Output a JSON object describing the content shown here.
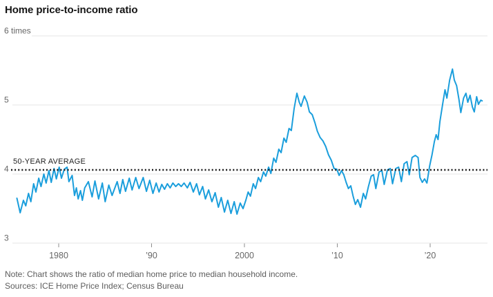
{
  "header": {
    "title": "Home price-to-income ratio"
  },
  "footer": {
    "note": "Note: Chart shows the ratio of median home price to median household income.",
    "sources": "Sources: ICE Home Price Index; Census Bureau"
  },
  "chart_data": {
    "type": "line",
    "title": "Home price-to-income ratio",
    "unit": "times",
    "grid": true,
    "legend": "none",
    "y_axis": {
      "range": [
        3,
        6
      ],
      "ticks": [
        {
          "value": 6,
          "label": "6 times"
        },
        {
          "value": 5,
          "label": "5"
        },
        {
          "value": 4,
          "label": "4"
        },
        {
          "value": 3,
          "label": "3"
        }
      ]
    },
    "x_axis": {
      "range": [
        1975.3,
        2026.3
      ],
      "ticks": [
        {
          "year": 1980,
          "label": "1980"
        },
        {
          "year": 1990,
          "label": "’90"
        },
        {
          "year": 2000,
          "label": "2000"
        },
        {
          "year": 2010,
          "label": "’10"
        },
        {
          "year": 2020,
          "label": "’20"
        }
      ]
    },
    "average_line": {
      "value": 4.06,
      "label": "50-YEAR AVERAGE",
      "color": "#1a1a1a",
      "style": "dotted"
    },
    "series": [
      {
        "name": "Home price-to-income ratio",
        "color": "#1A9EDC",
        "points": [
          [
            1975.5,
            3.65
          ],
          [
            1975.85,
            3.44
          ],
          [
            1976.2,
            3.62
          ],
          [
            1976.45,
            3.54
          ],
          [
            1976.75,
            3.72
          ],
          [
            1977.0,
            3.6
          ],
          [
            1977.3,
            3.86
          ],
          [
            1977.55,
            3.74
          ],
          [
            1977.85,
            3.94
          ],
          [
            1978.1,
            3.82
          ],
          [
            1978.4,
            4.0
          ],
          [
            1978.65,
            3.87
          ],
          [
            1978.95,
            4.05
          ],
          [
            1979.2,
            3.88
          ],
          [
            1979.5,
            4.08
          ],
          [
            1979.75,
            3.93
          ],
          [
            1980.05,
            4.1
          ],
          [
            1980.3,
            3.94
          ],
          [
            1980.6,
            4.07
          ],
          [
            1980.9,
            4.1
          ],
          [
            1981.1,
            3.89
          ],
          [
            1981.45,
            3.98
          ],
          [
            1981.7,
            3.69
          ],
          [
            1981.9,
            3.8
          ],
          [
            1982.1,
            3.64
          ],
          [
            1982.35,
            3.76
          ],
          [
            1982.55,
            3.62
          ],
          [
            1982.8,
            3.8
          ],
          [
            1983.2,
            3.89
          ],
          [
            1983.6,
            3.67
          ],
          [
            1983.9,
            3.9
          ],
          [
            1984.3,
            3.64
          ],
          [
            1984.7,
            3.87
          ],
          [
            1985.0,
            3.6
          ],
          [
            1985.4,
            3.84
          ],
          [
            1985.75,
            3.69
          ],
          [
            1986.3,
            3.89
          ],
          [
            1986.6,
            3.72
          ],
          [
            1986.9,
            3.92
          ],
          [
            1987.2,
            3.75
          ],
          [
            1987.6,
            3.94
          ],
          [
            1987.9,
            3.77
          ],
          [
            1988.3,
            3.95
          ],
          [
            1988.65,
            3.79
          ],
          [
            1989.1,
            3.95
          ],
          [
            1989.45,
            3.75
          ],
          [
            1989.8,
            3.91
          ],
          [
            1990.15,
            3.72
          ],
          [
            1990.5,
            3.87
          ],
          [
            1990.8,
            3.74
          ],
          [
            1991.1,
            3.85
          ],
          [
            1991.4,
            3.78
          ],
          [
            1991.7,
            3.86
          ],
          [
            1992.0,
            3.8
          ],
          [
            1992.3,
            3.87
          ],
          [
            1992.6,
            3.82
          ],
          [
            1992.9,
            3.86
          ],
          [
            1993.2,
            3.82
          ],
          [
            1993.5,
            3.87
          ],
          [
            1993.85,
            3.8
          ],
          [
            1994.15,
            3.88
          ],
          [
            1994.5,
            3.74
          ],
          [
            1994.85,
            3.86
          ],
          [
            1995.15,
            3.7
          ],
          [
            1995.5,
            3.82
          ],
          [
            1995.8,
            3.64
          ],
          [
            1996.15,
            3.77
          ],
          [
            1996.5,
            3.6
          ],
          [
            1996.85,
            3.73
          ],
          [
            1997.2,
            3.52
          ],
          [
            1997.5,
            3.66
          ],
          [
            1997.85,
            3.45
          ],
          [
            1998.2,
            3.62
          ],
          [
            1998.55,
            3.43
          ],
          [
            1998.9,
            3.6
          ],
          [
            1999.2,
            3.42
          ],
          [
            1999.55,
            3.58
          ],
          [
            1999.85,
            3.5
          ],
          [
            2000.15,
            3.62
          ],
          [
            2000.4,
            3.74
          ],
          [
            2000.65,
            3.68
          ],
          [
            2000.95,
            3.86
          ],
          [
            2001.2,
            3.79
          ],
          [
            2001.5,
            3.95
          ],
          [
            2001.75,
            3.89
          ],
          [
            2002.05,
            4.03
          ],
          [
            2002.3,
            3.97
          ],
          [
            2002.6,
            4.1
          ],
          [
            2002.85,
            4.01
          ],
          [
            2003.15,
            4.23
          ],
          [
            2003.4,
            4.17
          ],
          [
            2003.7,
            4.36
          ],
          [
            2003.95,
            4.31
          ],
          [
            2004.25,
            4.52
          ],
          [
            2004.5,
            4.46
          ],
          [
            2004.8,
            4.66
          ],
          [
            2005.05,
            4.63
          ],
          [
            2005.35,
            4.95
          ],
          [
            2005.65,
            5.17
          ],
          [
            2005.9,
            5.04
          ],
          [
            2006.1,
            4.98
          ],
          [
            2006.45,
            5.13
          ],
          [
            2006.75,
            5.04
          ],
          [
            2007.0,
            4.9
          ],
          [
            2007.3,
            4.86
          ],
          [
            2007.6,
            4.74
          ],
          [
            2007.85,
            4.62
          ],
          [
            2008.15,
            4.53
          ],
          [
            2008.45,
            4.48
          ],
          [
            2008.75,
            4.4
          ],
          [
            2009.05,
            4.28
          ],
          [
            2009.35,
            4.2
          ],
          [
            2009.65,
            4.08
          ],
          [
            2009.95,
            4.07
          ],
          [
            2010.2,
            3.98
          ],
          [
            2010.45,
            4.05
          ],
          [
            2010.7,
            3.99
          ],
          [
            2010.95,
            3.88
          ],
          [
            2011.2,
            3.79
          ],
          [
            2011.45,
            3.83
          ],
          [
            2011.7,
            3.68
          ],
          [
            2011.95,
            3.56
          ],
          [
            2012.2,
            3.63
          ],
          [
            2012.5,
            3.52
          ],
          [
            2012.8,
            3.72
          ],
          [
            2013.05,
            3.64
          ],
          [
            2013.35,
            3.82
          ],
          [
            2013.65,
            3.97
          ],
          [
            2013.9,
            3.99
          ],
          [
            2014.15,
            3.79
          ],
          [
            2014.5,
            4.03
          ],
          [
            2014.8,
            4.05
          ],
          [
            2015.05,
            3.85
          ],
          [
            2015.4,
            4.06
          ],
          [
            2015.7,
            4.08
          ],
          [
            2015.95,
            3.86
          ],
          [
            2016.3,
            4.08
          ],
          [
            2016.6,
            4.1
          ],
          [
            2016.9,
            3.89
          ],
          [
            2017.2,
            4.15
          ],
          [
            2017.5,
            4.18
          ],
          [
            2017.75,
            3.99
          ],
          [
            2018.05,
            4.24
          ],
          [
            2018.4,
            4.27
          ],
          [
            2018.7,
            4.24
          ],
          [
            2018.9,
            3.95
          ],
          [
            2019.15,
            3.88
          ],
          [
            2019.4,
            3.93
          ],
          [
            2019.65,
            3.87
          ],
          [
            2019.95,
            4.12
          ],
          [
            2020.2,
            4.28
          ],
          [
            2020.45,
            4.47
          ],
          [
            2020.65,
            4.57
          ],
          [
            2020.85,
            4.5
          ],
          [
            2021.05,
            4.76
          ],
          [
            2021.35,
            5.02
          ],
          [
            2021.6,
            5.22
          ],
          [
            2021.8,
            5.1
          ],
          [
            2022.1,
            5.36
          ],
          [
            2022.4,
            5.52
          ],
          [
            2022.6,
            5.36
          ],
          [
            2022.85,
            5.28
          ],
          [
            2023.1,
            5.08
          ],
          [
            2023.3,
            4.89
          ],
          [
            2023.6,
            5.1
          ],
          [
            2023.85,
            5.17
          ],
          [
            2024.05,
            5.04
          ],
          [
            2024.3,
            5.14
          ],
          [
            2024.55,
            4.97
          ],
          [
            2024.75,
            4.9
          ],
          [
            2025.0,
            5.12
          ],
          [
            2025.2,
            5.01
          ],
          [
            2025.45,
            5.07
          ],
          [
            2025.6,
            5.06
          ]
        ]
      }
    ],
    "colors": {
      "line": "#1A9EDC",
      "gridline": "#E6E6E6",
      "average_line": "#1a1a1a",
      "axis_text": "#666666",
      "title_text": "#141414",
      "note_text": "#5c5c5c"
    }
  }
}
